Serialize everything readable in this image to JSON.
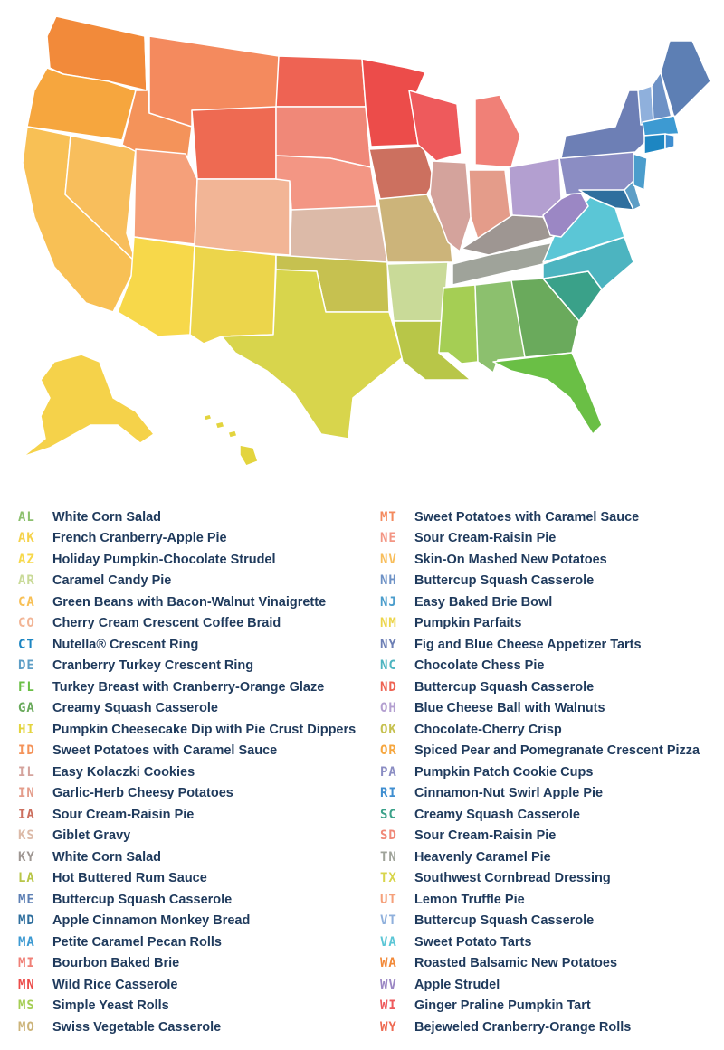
{
  "left_column": [
    {
      "abbr": "AL",
      "dish": "White Corn Salad",
      "color": "#8cc06e"
    },
    {
      "abbr": "AK",
      "dish": "French Cranberry-Apple Pie",
      "color": "#f5d24a"
    },
    {
      "abbr": "AZ",
      "dish": "Holiday Pumpkin-Chocolate Strudel",
      "color": "#f7d84a"
    },
    {
      "abbr": "AR",
      "dish": "Caramel Candy Pie",
      "color": "#c9da98"
    },
    {
      "abbr": "CA",
      "dish": "Green Beans with Bacon-Walnut Vinaigrette",
      "color": "#f8c055"
    },
    {
      "abbr": "CO",
      "dish": "Cherry Cream Crescent Coffee Braid",
      "color": "#f2b596"
    },
    {
      "abbr": "CT",
      "dish": "Nutella® Crescent Ring",
      "color": "#1d86c2"
    },
    {
      "abbr": "DE",
      "dish": "Cranberry Turkey Crescent Ring",
      "color": "#5d9ec6"
    },
    {
      "abbr": "FL",
      "dish": "Turkey Breast with Cranberry-Orange Glaze",
      "color": "#6abf45"
    },
    {
      "abbr": "GA",
      "dish": "Creamy Squash Casserole",
      "color": "#6aaa5c"
    },
    {
      "abbr": "HI",
      "dish": "Pumpkin Cheesecake Dip with Pie Crust Dippers",
      "color": "#e3d43e"
    },
    {
      "abbr": "ID",
      "dish": "Sweet Potatoes with Caramel Sauce",
      "color": "#f4935a"
    },
    {
      "abbr": "IL",
      "dish": "Easy Kolaczki Cookies",
      "color": "#d4a39c"
    },
    {
      "abbr": "IN",
      "dish": "Garlic-Herb Cheesy Potatoes",
      "color": "#e49c8a"
    },
    {
      "abbr": "IA",
      "dish": "Sour Cream-Raisin Pie",
      "color": "#cc705f"
    },
    {
      "abbr": "KS",
      "dish": "Giblet Gravy",
      "color": "#dcbaa8"
    },
    {
      "abbr": "KY",
      "dish": "White Corn Salad",
      "color": "#9e9692"
    },
    {
      "abbr": "LA",
      "dish": "Hot Buttered Rum Sauce",
      "color": "#b8c648"
    },
    {
      "abbr": "ME",
      "dish": "Buttercup Squash Casserole",
      "color": "#5d7fb4"
    },
    {
      "abbr": "MD",
      "dish": "Apple Cinnamon Monkey Bread",
      "color": "#2f6f9e"
    },
    {
      "abbr": "MA",
      "dish": "Petite Caramel Pecan Rolls",
      "color": "#3d9ad2"
    },
    {
      "abbr": "MI",
      "dish": "Bourbon Baked Brie",
      "color": "#f08077"
    },
    {
      "abbr": "MN",
      "dish": "Wild Rice Casserole",
      "color": "#ec4c4a"
    },
    {
      "abbr": "MS",
      "dish": "Simple Yeast Rolls",
      "color": "#a5ce54"
    },
    {
      "abbr": "MO",
      "dish": "Swiss Vegetable Casserole",
      "color": "#ccb47a"
    }
  ],
  "right_column": [
    {
      "abbr": "MT",
      "dish": "Sweet Potatoes with Caramel Sauce",
      "color": "#f48a5e"
    },
    {
      "abbr": "NE",
      "dish": "Sour Cream-Raisin Pie",
      "color": "#f39684"
    },
    {
      "abbr": "NV",
      "dish": "Skin-On Mashed New Potatoes",
      "color": "#f8be5c"
    },
    {
      "abbr": "NH",
      "dish": "Buttercup Squash Casserole",
      "color": "#6e92c6"
    },
    {
      "abbr": "NJ",
      "dish": "Easy Baked Brie Bowl",
      "color": "#4b9dcc"
    },
    {
      "abbr": "NM",
      "dish": "Pumpkin Parfaits",
      "color": "#ecd54b"
    },
    {
      "abbr": "NY",
      "dish": "Fig and Blue Cheese Appetizer Tarts",
      "color": "#6d7fb5"
    },
    {
      "abbr": "NC",
      "dish": "Chocolate Chess Pie",
      "color": "#4cb4c0"
    },
    {
      "abbr": "ND",
      "dish": "Buttercup Squash Casserole",
      "color": "#ee6353"
    },
    {
      "abbr": "OH",
      "dish": "Blue Cheese Ball with Walnuts",
      "color": "#b39fd0"
    },
    {
      "abbr": "OK",
      "dish": "Chocolate-Cherry Crisp",
      "color": "#c6c150"
    },
    {
      "abbr": "OR",
      "dish": "Spiced Pear and Pomegranate Crescent Pizza",
      "color": "#f6a63e"
    },
    {
      "abbr": "PA",
      "dish": "Pumpkin Patch Cookie Cups",
      "color": "#8b8dc3"
    },
    {
      "abbr": "RI",
      "dish": "Cinnamon-Nut Swirl Apple Pie",
      "color": "#3f8ed0"
    },
    {
      "abbr": "SC",
      "dish": "Creamy Squash Casserole",
      "color": "#3aa189"
    },
    {
      "abbr": "SD",
      "dish": "Sour Cream-Raisin Pie",
      "color": "#f08878"
    },
    {
      "abbr": "TN",
      "dish": "Heavenly Caramel Pie",
      "color": "#9fa39a"
    },
    {
      "abbr": "TX",
      "dish": "Southwest Cornbread Dressing",
      "color": "#d8d54c"
    },
    {
      "abbr": "UT",
      "dish": "Lemon Truffle Pie",
      "color": "#f5a07a"
    },
    {
      "abbr": "VT",
      "dish": "Buttercup Squash Casserole",
      "color": "#8fb0dc"
    },
    {
      "abbr": "VA",
      "dish": "Sweet Potato Tarts",
      "color": "#5bc6d6"
    },
    {
      "abbr": "WA",
      "dish": "Roasted Balsamic New Potatoes",
      "color": "#f28a3a"
    },
    {
      "abbr": "WV",
      "dish": "Apple Strudel",
      "color": "#9b87c4"
    },
    {
      "abbr": "WI",
      "dish": "Ginger Praline Pumpkin Tart",
      "color": "#ee5a5c"
    },
    {
      "abbr": "WY",
      "dish": "Bejeweled Cranberry-Orange Rolls",
      "color": "#ee6a52"
    }
  ]
}
